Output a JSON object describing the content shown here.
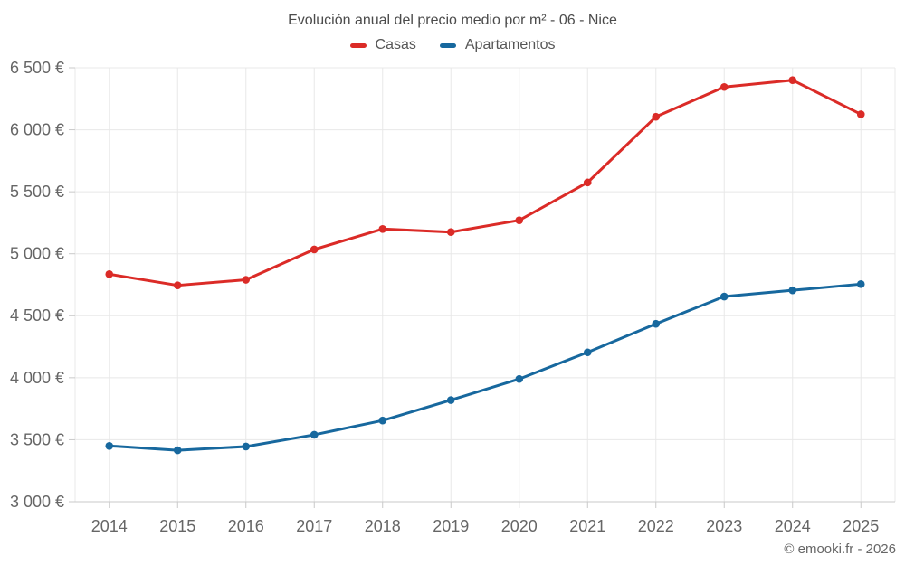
{
  "footer": {
    "copyright": "© emooki.fr - 2026"
  },
  "chart_data": {
    "type": "line",
    "title": "Evolución anual del precio medio por m² - 06 - Nice",
    "categories": [
      "2014",
      "2015",
      "2016",
      "2017",
      "2018",
      "2019",
      "2020",
      "2021",
      "2022",
      "2023",
      "2024",
      "2025"
    ],
    "series": [
      {
        "name": "Casas",
        "color": "#db2b27",
        "values": [
          4835,
          4745,
          4790,
          5035,
          5200,
          5175,
          5270,
          5575,
          6105,
          6345,
          6400,
          6125
        ]
      },
      {
        "name": "Apartamentos",
        "color": "#17689e",
        "values": [
          3450,
          3415,
          3445,
          3540,
          3655,
          3820,
          3990,
          4205,
          4435,
          4655,
          4705,
          4755
        ]
      }
    ],
    "xlabel": "",
    "ylabel": "",
    "ylim": [
      3000,
      6500
    ],
    "y_step": 500,
    "y_tick_labels": [
      "3 000 €",
      "3 500 €",
      "4 000 €",
      "4 500 €",
      "5 000 €",
      "5 500 €",
      "6 000 €",
      "6 500 €"
    ],
    "y_suffix": " €",
    "grid": true,
    "legend_position": "top",
    "colors": {
      "grid_line": "#e8e8e8",
      "axis_line": "#c9c9c9",
      "tick": "#c9c9c9",
      "tick_label": "#666666",
      "title": "#4b4b4b",
      "legend_label": "#565656"
    }
  }
}
